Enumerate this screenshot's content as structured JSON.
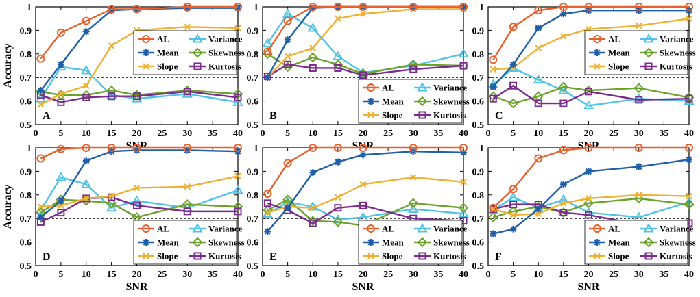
{
  "figure": {
    "xlabel": "SNR",
    "ylabel": "Accuracy"
  },
  "styles": {
    "AL": {
      "color": "#E8602C",
      "marker": "circle"
    },
    "Mean": {
      "color": "#1F5FA8",
      "marker": "star"
    },
    "Slope": {
      "color": "#F0B030",
      "marker": "x"
    },
    "Variance": {
      "color": "#4FC3E8",
      "marker": "triangle"
    },
    "Skewness": {
      "color": "#6BA22A",
      "marker": "diamond"
    },
    "Kurtosis": {
      "color": "#7B2A8E",
      "marker": "square"
    },
    "threshold": "#000000"
  },
  "chart_data": [
    {
      "type": "line",
      "label": "A",
      "x": [
        1,
        5,
        10,
        15,
        20,
        30,
        40
      ],
      "xticks": [
        "0",
        "5",
        "10",
        "15",
        "20",
        "25",
        "30",
        "35",
        "40"
      ],
      "yticks": [
        "0.5",
        "0.6",
        "0.7",
        "0.8",
        "0.9",
        "1"
      ],
      "xlim": [
        0,
        40
      ],
      "ylim": [
        0.5,
        1
      ],
      "threshold": 0.7,
      "legend_position": "middle-right",
      "series": [
        {
          "name": "AL",
          "values": [
            0.78,
            0.89,
            0.94,
            0.99,
            0.99,
            1.0,
            1.0
          ]
        },
        {
          "name": "Variance",
          "values": [
            0.61,
            0.745,
            0.73,
            0.625,
            0.61,
            0.63,
            0.595
          ]
        },
        {
          "name": "Mean",
          "values": [
            0.645,
            0.755,
            0.895,
            0.985,
            0.99,
            0.995,
            0.995
          ]
        },
        {
          "name": "Skewness",
          "values": [
            0.64,
            0.625,
            0.625,
            0.645,
            0.625,
            0.645,
            0.63
          ]
        },
        {
          "name": "Slope",
          "values": [
            0.585,
            0.63,
            0.665,
            0.835,
            0.9,
            0.915,
            0.91
          ]
        },
        {
          "name": "Kurtosis",
          "values": [
            0.625,
            0.595,
            0.615,
            0.62,
            0.62,
            0.64,
            0.615
          ]
        }
      ]
    },
    {
      "type": "line",
      "label": "B",
      "x": [
        1,
        5,
        10,
        15,
        20,
        30,
        40
      ],
      "xticks": [
        "0",
        "5",
        "10",
        "15",
        "20",
        "25",
        "30",
        "35",
        "40"
      ],
      "yticks": [
        "0.5",
        "0.6",
        "0.7",
        "0.8",
        "0.9",
        "1"
      ],
      "xlim": [
        0,
        40
      ],
      "ylim": [
        0.5,
        1
      ],
      "threshold": 0.7,
      "legend_position": "bottom-right",
      "series": [
        {
          "name": "AL",
          "values": [
            0.81,
            0.94,
            1.0,
            1.0,
            1.0,
            1.0,
            1.0
          ]
        },
        {
          "name": "Variance",
          "values": [
            0.845,
            0.97,
            0.91,
            0.79,
            0.72,
            0.75,
            0.8
          ]
        },
        {
          "name": "Mean",
          "values": [
            0.7,
            0.86,
            0.995,
            1.0,
            1.0,
            1.0,
            1.0
          ]
        },
        {
          "name": "Skewness",
          "values": [
            0.8,
            0.745,
            0.785,
            0.755,
            0.715,
            0.755,
            0.75
          ]
        },
        {
          "name": "Slope",
          "values": [
            0.7,
            0.79,
            0.825,
            0.95,
            0.97,
            0.99,
            0.99
          ]
        },
        {
          "name": "Kurtosis",
          "values": [
            0.705,
            0.755,
            0.74,
            0.74,
            0.71,
            0.735,
            0.75
          ]
        }
      ]
    },
    {
      "type": "line",
      "label": "C",
      "x": [
        1,
        5,
        10,
        15,
        20,
        30,
        40
      ],
      "xticks": [
        "0",
        "5",
        "10",
        "15",
        "20",
        "25",
        "30",
        "35",
        "40"
      ],
      "yticks": [
        "0.5",
        "0.6",
        "0.7",
        "0.8",
        "0.9",
        "1"
      ],
      "xlim": [
        0,
        40
      ],
      "ylim": [
        0.5,
        1
      ],
      "threshold": 0.7,
      "legend_position": "middle-right",
      "series": [
        {
          "name": "AL",
          "values": [
            0.775,
            0.915,
            0.985,
            1.0,
            1.0,
            1.0,
            1.0
          ]
        },
        {
          "name": "Variance",
          "values": [
            0.67,
            0.74,
            0.69,
            0.645,
            0.58,
            0.61,
            0.6
          ]
        },
        {
          "name": "Mean",
          "values": [
            0.66,
            0.755,
            0.91,
            0.97,
            0.985,
            0.985,
            0.985
          ]
        },
        {
          "name": "Skewness",
          "values": [
            0.62,
            0.59,
            0.62,
            0.66,
            0.645,
            0.655,
            0.615
          ]
        },
        {
          "name": "Slope",
          "values": [
            0.735,
            0.74,
            0.825,
            0.875,
            0.905,
            0.92,
            0.95
          ]
        },
        {
          "name": "Kurtosis",
          "values": [
            0.61,
            0.665,
            0.59,
            0.59,
            0.64,
            0.605,
            0.61
          ]
        }
      ]
    },
    {
      "type": "line",
      "label": "D",
      "x": [
        1,
        5,
        10,
        15,
        20,
        30,
        40
      ],
      "xticks": [
        "0",
        "5",
        "10",
        "15",
        "20",
        "25",
        "30",
        "35",
        "40"
      ],
      "yticks": [
        "0.5",
        "0.6",
        "0.7",
        "0.8",
        "0.9",
        "1"
      ],
      "xlim": [
        0,
        40
      ],
      "ylim": [
        0.5,
        1
      ],
      "threshold": 0.7,
      "legend_position": "bottom-right",
      "series": [
        {
          "name": "AL",
          "values": [
            0.955,
            0.995,
            1.0,
            1.0,
            1.0,
            1.0,
            1.0
          ]
        },
        {
          "name": "Variance",
          "values": [
            0.735,
            0.875,
            0.845,
            0.745,
            0.775,
            0.745,
            0.82
          ]
        },
        {
          "name": "Mean",
          "values": [
            0.705,
            0.775,
            0.945,
            0.985,
            0.99,
            0.99,
            0.985
          ]
        },
        {
          "name": "Skewness",
          "values": [
            0.725,
            0.78,
            0.775,
            0.765,
            0.705,
            0.76,
            0.75
          ]
        },
        {
          "name": "Slope",
          "values": [
            0.75,
            0.755,
            0.785,
            0.795,
            0.83,
            0.835,
            0.88
          ]
        },
        {
          "name": "Kurtosis",
          "values": [
            0.685,
            0.725,
            0.785,
            0.79,
            0.755,
            0.73,
            0.73
          ]
        }
      ]
    },
    {
      "type": "line",
      "label": "E",
      "x": [
        1,
        5,
        10,
        15,
        20,
        30,
        40
      ],
      "xticks": [
        "0",
        "5",
        "10",
        "15",
        "20",
        "25",
        "30",
        "35",
        "40"
      ],
      "yticks": [
        "0.5",
        "0.6",
        "0.7",
        "0.8",
        "0.9",
        "1"
      ],
      "xlim": [
        0,
        40
      ],
      "ylim": [
        0.5,
        1
      ],
      "threshold": 0.7,
      "legend_position": "bottom-right",
      "series": [
        {
          "name": "AL",
          "values": [
            0.805,
            0.935,
            1.0,
            1.0,
            1.0,
            1.0,
            1.0
          ]
        },
        {
          "name": "Variance",
          "values": [
            0.72,
            0.77,
            0.75,
            0.695,
            0.705,
            0.74,
            0.72
          ]
        },
        {
          "name": "Mean",
          "values": [
            0.645,
            0.745,
            0.895,
            0.94,
            0.97,
            0.985,
            0.98
          ]
        },
        {
          "name": "Skewness",
          "values": [
            0.735,
            0.78,
            0.69,
            0.685,
            0.67,
            0.765,
            0.745
          ]
        },
        {
          "name": "Slope",
          "values": [
            0.725,
            0.75,
            0.745,
            0.79,
            0.845,
            0.875,
            0.855
          ]
        },
        {
          "name": "Kurtosis",
          "values": [
            0.765,
            0.735,
            0.68,
            0.745,
            0.755,
            0.7,
            0.69
          ]
        }
      ]
    },
    {
      "type": "line",
      "label": "F",
      "x": [
        1,
        5,
        10,
        15,
        20,
        30,
        40
      ],
      "xticks": [
        "0",
        "5",
        "10",
        "15",
        "20",
        "25",
        "30",
        "35",
        "40"
      ],
      "yticks": [
        "0.5",
        "0.6",
        "0.7",
        "0.8",
        "0.9",
        "1"
      ],
      "xlim": [
        0,
        40
      ],
      "ylim": [
        0.5,
        1
      ],
      "threshold": 0.7,
      "legend_position": "bottom-right",
      "series": [
        {
          "name": "AL",
          "values": [
            0.745,
            0.825,
            0.955,
            0.99,
            1.0,
            1.0,
            1.0
          ]
        },
        {
          "name": "Variance",
          "values": [
            0.735,
            0.79,
            0.745,
            0.78,
            0.725,
            0.705,
            0.77
          ]
        },
        {
          "name": "Mean",
          "values": [
            0.635,
            0.655,
            0.74,
            0.845,
            0.9,
            0.92,
            0.95
          ]
        },
        {
          "name": "Skewness",
          "values": [
            0.705,
            0.73,
            0.75,
            0.725,
            0.765,
            0.785,
            0.76
          ]
        },
        {
          "name": "Slope",
          "values": [
            0.74,
            0.715,
            0.72,
            0.765,
            0.785,
            0.8,
            0.795
          ]
        },
        {
          "name": "Kurtosis",
          "values": [
            0.74,
            0.76,
            0.76,
            0.725,
            0.715,
            0.675,
            0.68
          ]
        }
      ]
    }
  ]
}
